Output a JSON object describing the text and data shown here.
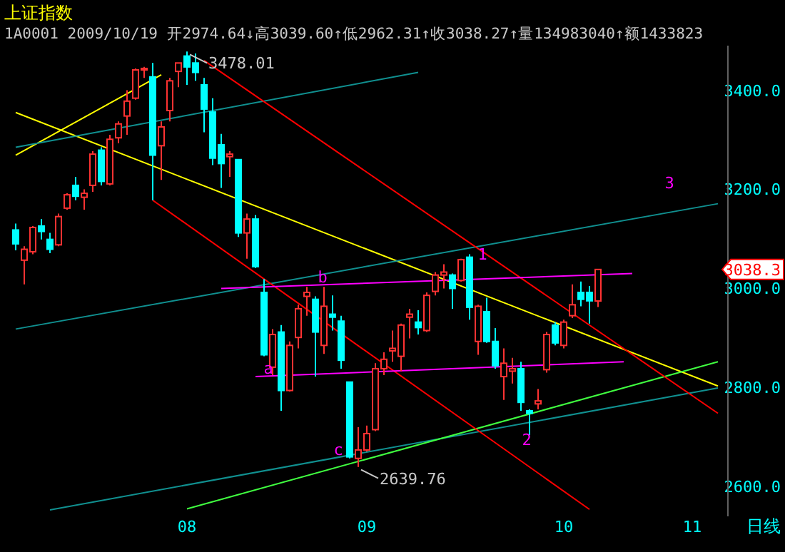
{
  "chart_data": {
    "type": "candlestick",
    "title": "上证指数",
    "subtitle": "1A0001 2009/10/19 开2974.64↓高3039.60↑低2962.31↑收3038.27↑量134983040↑额1433823",
    "categories": [
      null,
      null,
      null,
      null,
      null,
      null,
      null,
      null,
      null,
      null,
      null,
      null,
      null,
      null,
      null,
      null,
      null,
      null,
      null,
      null,
      "08",
      null,
      null,
      null,
      null,
      null,
      null,
      null,
      null,
      null,
      null,
      null,
      null,
      null,
      null,
      null,
      null,
      null,
      null,
      null,
      null,
      "09",
      null,
      null,
      null,
      null,
      null,
      null,
      null,
      null,
      null,
      null,
      null,
      null,
      null,
      null,
      null,
      null,
      null,
      null,
      null,
      null,
      null,
      null,
      "10",
      null,
      null,
      null,
      null,
      null,
      null,
      null,
      null,
      null,
      null,
      null,
      null,
      null,
      null,
      "11",
      null,
      null,
      null
    ],
    "ohlc": [
      [
        3118,
        3131,
        3077,
        3090
      ],
      [
        3057,
        3085,
        3008,
        3079
      ],
      [
        3074,
        3126,
        3069,
        3123
      ],
      [
        3126,
        3140,
        3099,
        3115
      ],
      [
        3099,
        3112,
        3071,
        3079
      ],
      [
        3088,
        3151,
        3085,
        3145
      ],
      [
        3162,
        3192,
        3159,
        3189
      ],
      [
        3208,
        3225,
        3178,
        3186
      ],
      [
        3184,
        3200,
        3159,
        3192
      ],
      [
        3208,
        3277,
        3195,
        3271
      ],
      [
        3279,
        3285,
        3208,
        3216
      ],
      [
        3211,
        3310,
        3208,
        3301
      ],
      [
        3304,
        3337,
        3293,
        3332
      ],
      [
        3348,
        3400,
        3310,
        3378
      ],
      [
        3384,
        3444,
        3381,
        3441
      ],
      [
        3441,
        3447,
        3425,
        3444
      ],
      [
        3427,
        3455,
        3178,
        3269
      ],
      [
        3288,
        3337,
        3219,
        3326
      ],
      [
        3359,
        3425,
        3337,
        3419
      ],
      [
        3438,
        3455,
        3406,
        3455
      ],
      [
        3469,
        3478.01,
        3411,
        3447
      ],
      [
        3455,
        3474,
        3419,
        3436
      ],
      [
        3411,
        3425,
        3315,
        3362
      ],
      [
        3356,
        3384,
        3249,
        3263
      ],
      [
        3290,
        3312,
        3203,
        3252
      ],
      [
        3266,
        3277,
        3225,
        3271
      ],
      [
        3260,
        3260,
        3104,
        3112
      ],
      [
        3112,
        3151,
        3060,
        3140
      ],
      [
        3140,
        3148,
        3041,
        3044
      ],
      [
        2992,
        3019,
        2863,
        2866
      ],
      [
        2841,
        2918,
        2825,
        2907
      ],
      [
        2912,
        2926,
        2753,
        2794
      ],
      [
        2794,
        2893,
        2792,
        2885
      ],
      [
        2901,
        2967,
        2879,
        2959
      ],
      [
        2984,
        3003,
        2945,
        2992
      ],
      [
        2978,
        2984,
        2822,
        2912
      ],
      [
        2885,
        3003,
        2868,
        2964
      ],
      [
        2948,
        2986,
        2915,
        2942
      ],
      [
        2934,
        2945,
        2838,
        2855
      ],
      [
        2811,
        2811,
        2657,
        2660
      ],
      [
        2657,
        2720,
        2639.76,
        2674
      ],
      [
        2674,
        2723,
        2671,
        2707
      ],
      [
        2715,
        2849,
        2712,
        2838
      ],
      [
        2838,
        2871,
        2825,
        2857
      ],
      [
        2874,
        2915,
        2852,
        2879
      ],
      [
        2863,
        2929,
        2833,
        2926
      ],
      [
        2942,
        2959,
        2899,
        2948
      ],
      [
        2932,
        2956,
        2907,
        2921
      ],
      [
        2915,
        2992,
        2912,
        2986
      ],
      [
        2994,
        3033,
        2986,
        3027
      ],
      [
        3027,
        3049,
        3000,
        3033
      ],
      [
        3027,
        3030,
        2959,
        3000
      ],
      [
        3016,
        3060,
        3014,
        3058
      ],
      [
        3063,
        3069,
        2937,
        2962
      ],
      [
        2893,
        2967,
        2866,
        2964
      ],
      [
        2953,
        2981,
        2890,
        2893
      ],
      [
        2893,
        2920,
        2838,
        2844
      ],
      [
        2822,
        2879,
        2775,
        2849
      ],
      [
        2833,
        2860,
        2808,
        2838
      ],
      [
        2838,
        2852,
        2753,
        2770
      ],
      [
        2753,
        2756,
        2704,
        2748
      ],
      [
        2767,
        2797,
        2756,
        2773
      ],
      [
        2836,
        2912,
        2830,
        2907
      ],
      [
        2926,
        2932,
        2885,
        2890
      ],
      [
        2885,
        2937,
        2879,
        2932
      ],
      [
        2945,
        3008,
        2940,
        2967
      ],
      [
        2992,
        3014,
        2964,
        2978
      ],
      [
        2992,
        3005,
        2929,
        2975
      ],
      [
        2974.64,
        3039.6,
        2962.31,
        3038.27
      ],
      null,
      null,
      null,
      null,
      null,
      null,
      null,
      null,
      null,
      null,
      null,
      null,
      null,
      null
    ],
    "colors": [
      "#00ffff",
      "#ff3232",
      "#ff3232",
      "#00ffff",
      "#00ffff",
      "#ff3232",
      "#ff3232",
      "#00ffff",
      "#ff3232",
      "#ff3232",
      "#00ffff",
      "#ff3232",
      "#ff3232",
      "#ff3232",
      "#ff3232",
      "#ff3232",
      "#00ffff",
      "#ff3232",
      "#ff3232",
      "#ff3232",
      "#00ffff",
      "#00ffff",
      "#00ffff",
      "#00ffff",
      "#00ffff",
      "#ff3232",
      "#00ffff",
      "#ff3232",
      "#00ffff",
      "#00ffff",
      "#ff3232",
      "#00ffff",
      "#ff3232",
      "#ff3232",
      "#ff3232",
      "#00ffff",
      "#ff3232",
      "#00ffff",
      "#00ffff",
      "#00ffff",
      "#ff3232",
      "#ff3232",
      "#ff3232",
      "#ff3232",
      "#ff3232",
      "#ff3232",
      "#ff3232",
      "#00ffff",
      "#ff3232",
      "#ff3232",
      "#ff3232",
      "#00ffff",
      "#ff3232",
      "#00ffff",
      "#ff3232",
      "#00ffff",
      "#00ffff",
      "#ff3232",
      "#ff3232",
      "#00ffff",
      "#00ffff",
      "#ff3232",
      "#ff3232",
      "#00ffff",
      "#ff3232",
      "#ff3232",
      "#00ffff",
      "#00ffff",
      "#ff3232",
      null,
      null,
      null,
      null,
      null,
      null,
      null,
      null,
      null,
      null,
      null,
      null,
      null,
      null
    ],
    "ylim": [
      2540,
      3490
    ],
    "yticks": [
      {
        "value": 2600,
        "label": "2600.0"
      },
      {
        "value": 2800,
        "label": "2800.0"
      },
      {
        "value": 3000,
        "label": "3000.0"
      },
      {
        "value": 3200,
        "label": "3200.0"
      },
      {
        "value": 3400,
        "label": "3400.0"
      }
    ],
    "series": [
      {
        "type": "line",
        "color": "#ffff00",
        "values": [
          3269,
          null,
          null,
          null,
          null,
          null,
          null,
          null,
          null,
          null,
          null,
          null,
          null,
          null,
          null,
          null,
          null,
          3431,
          null,
          null,
          null,
          null,
          null,
          null,
          null,
          null,
          null,
          null,
          null,
          null,
          null,
          null,
          null,
          null,
          null,
          null,
          null,
          null,
          null,
          null,
          null,
          null,
          null,
          null,
          null,
          null,
          null,
          null,
          null,
          null,
          null,
          null,
          null,
          null,
          null,
          null,
          null,
          null,
          null,
          null,
          null,
          null,
          null,
          null,
          null,
          null,
          null,
          null,
          null,
          null,
          null,
          null,
          null,
          null,
          null,
          null,
          null,
          null,
          null,
          null,
          null,
          null,
          null
        ]
      },
      {
        "type": "line",
        "color": "#ffff00",
        "values": [
          3355,
          null,
          null,
          null,
          null,
          null,
          null,
          null,
          null,
          null,
          null,
          null,
          null,
          null,
          null,
          null,
          null,
          null,
          null,
          null,
          null,
          null,
          null,
          null,
          null,
          null,
          null,
          null,
          null,
          null,
          null,
          null,
          null,
          null,
          null,
          null,
          null,
          null,
          null,
          null,
          null,
          null,
          null,
          null,
          null,
          null,
          null,
          null,
          null,
          null,
          null,
          null,
          null,
          null,
          null,
          null,
          null,
          null,
          null,
          null,
          null,
          null,
          null,
          null,
          null,
          null,
          null,
          null,
          null,
          null,
          null,
          null,
          null,
          null,
          null,
          null,
          null,
          null,
          null,
          null,
          null,
          null,
          2803
        ]
      },
      {
        "type": "line",
        "color": "#109090",
        "values": [
          3285,
          null,
          null,
          null,
          null,
          null,
          null,
          null,
          null,
          null,
          null,
          null,
          null,
          null,
          null,
          null,
          null,
          null,
          null,
          null,
          null,
          null,
          null,
          null,
          null,
          null,
          null,
          null,
          null,
          null,
          null,
          null,
          null,
          null,
          null,
          null,
          null,
          null,
          null,
          null,
          null,
          null,
          null,
          null,
          null,
          null,
          null,
          3436,
          null,
          null,
          null,
          null,
          null,
          null,
          null,
          null,
          null,
          null,
          null,
          null,
          null,
          null,
          null,
          null,
          null,
          null,
          null,
          null,
          null,
          null,
          null,
          null,
          null,
          null,
          null,
          null,
          null,
          null,
          null,
          null,
          null,
          null,
          null
        ]
      },
      {
        "type": "line",
        "color": "#109090",
        "values": [
          2918,
          null,
          null,
          null,
          null,
          null,
          null,
          null,
          null,
          null,
          null,
          null,
          null,
          null,
          null,
          null,
          null,
          null,
          null,
          null,
          null,
          null,
          null,
          null,
          null,
          null,
          null,
          null,
          null,
          null,
          null,
          null,
          null,
          null,
          null,
          null,
          null,
          null,
          null,
          null,
          null,
          null,
          null,
          null,
          null,
          null,
          null,
          null,
          null,
          null,
          null,
          null,
          null,
          null,
          null,
          null,
          null,
          null,
          null,
          null,
          null,
          null,
          null,
          null,
          null,
          null,
          null,
          null,
          null,
          null,
          null,
          null,
          null,
          null,
          null,
          null,
          null,
          null,
          null,
          null,
          null,
          null,
          3171
        ]
      },
      {
        "type": "line",
        "color": "#109090",
        "values": [
          null,
          null,
          null,
          null,
          2553,
          null,
          null,
          null,
          null,
          null,
          null,
          null,
          null,
          null,
          null,
          null,
          null,
          null,
          null,
          null,
          null,
          null,
          null,
          null,
          null,
          null,
          null,
          null,
          null,
          null,
          null,
          null,
          null,
          null,
          null,
          null,
          null,
          null,
          null,
          null,
          null,
          null,
          null,
          null,
          null,
          null,
          null,
          null,
          null,
          null,
          null,
          null,
          null,
          null,
          null,
          null,
          null,
          null,
          null,
          null,
          null,
          null,
          null,
          null,
          null,
          null,
          null,
          null,
          null,
          null,
          null,
          null,
          null,
          null,
          null,
          null,
          null,
          null,
          null,
          null,
          null,
          null,
          2799
        ]
      },
      {
        "type": "line",
        "color": "#40ff40",
        "values": [
          null,
          null,
          null,
          null,
          null,
          null,
          null,
          null,
          null,
          null,
          null,
          null,
          null,
          null,
          null,
          null,
          null,
          null,
          null,
          null,
          2555,
          null,
          null,
          null,
          null,
          null,
          null,
          null,
          null,
          null,
          null,
          null,
          null,
          null,
          null,
          null,
          null,
          null,
          null,
          null,
          null,
          null,
          null,
          null,
          null,
          null,
          null,
          null,
          null,
          null,
          null,
          null,
          null,
          null,
          null,
          null,
          null,
          null,
          null,
          null,
          null,
          null,
          null,
          null,
          null,
          null,
          null,
          null,
          null,
          null,
          null,
          null,
          null,
          null,
          null,
          null,
          null,
          null,
          null,
          null,
          null,
          null,
          2852
        ]
      },
      {
        "type": "line",
        "color": "#ff0000",
        "values": [
          null,
          null,
          null,
          null,
          null,
          null,
          null,
          null,
          null,
          null,
          null,
          null,
          null,
          null,
          null,
          null,
          null,
          null,
          null,
          null,
          null,
          null,
          3460,
          null,
          null,
          null,
          null,
          null,
          null,
          null,
          null,
          null,
          null,
          null,
          null,
          null,
          null,
          null,
          null,
          null,
          null,
          null,
          null,
          null,
          null,
          null,
          null,
          null,
          null,
          null,
          null,
          null,
          null,
          null,
          null,
          null,
          null,
          null,
          null,
          null,
          null,
          null,
          null,
          null,
          null,
          null,
          null,
          null,
          null,
          null,
          null,
          null,
          null,
          null,
          null,
          null,
          null,
          null,
          null,
          null,
          null,
          null,
          2748
        ]
      },
      {
        "type": "line",
        "color": "#ff0000",
        "values": [
          null,
          null,
          null,
          null,
          null,
          null,
          null,
          null,
          null,
          null,
          null,
          null,
          null,
          null,
          null,
          null,
          3178,
          null,
          null,
          null,
          null,
          null,
          null,
          null,
          null,
          null,
          null,
          null,
          null,
          null,
          null,
          null,
          null,
          null,
          null,
          null,
          null,
          null,
          null,
          null,
          null,
          null,
          null,
          null,
          null,
          null,
          null,
          null,
          null,
          null,
          null,
          null,
          null,
          null,
          null,
          null,
          null,
          null,
          null,
          null,
          null,
          null,
          null,
          null,
          null,
          null,
          null,
          2554,
          null,
          null,
          null,
          null,
          null,
          null,
          null,
          null,
          null,
          null,
          null,
          null,
          null,
          null,
          null
        ]
      },
      {
        "type": "line",
        "color": "#ff00ff",
        "values": [
          null,
          null,
          null,
          null,
          null,
          null,
          null,
          null,
          null,
          null,
          null,
          null,
          null,
          null,
          null,
          null,
          null,
          null,
          null,
          null,
          null,
          null,
          null,
          null,
          3000,
          null,
          null,
          null,
          null,
          null,
          null,
          null,
          null,
          null,
          null,
          null,
          null,
          null,
          null,
          null,
          null,
          null,
          null,
          null,
          null,
          null,
          null,
          null,
          null,
          null,
          null,
          null,
          null,
          null,
          null,
          null,
          null,
          null,
          null,
          null,
          null,
          null,
          null,
          null,
          null,
          null,
          null,
          null,
          null,
          null,
          null,
          null,
          3030,
          null,
          null,
          null,
          null,
          null,
          null,
          null,
          null,
          null,
          null
        ]
      },
      {
        "type": "line",
        "color": "#ff00ff",
        "values": [
          null,
          null,
          null,
          null,
          null,
          null,
          null,
          null,
          null,
          null,
          null,
          null,
          null,
          null,
          null,
          null,
          null,
          null,
          null,
          null,
          null,
          null,
          null,
          null,
          null,
          null,
          null,
          null,
          2822,
          null,
          null,
          null,
          null,
          null,
          null,
          null,
          null,
          null,
          null,
          null,
          null,
          null,
          null,
          null,
          null,
          null,
          null,
          null,
          null,
          null,
          null,
          null,
          null,
          null,
          null,
          null,
          null,
          null,
          null,
          null,
          null,
          null,
          null,
          null,
          null,
          null,
          null,
          null,
          null,
          null,
          null,
          2852,
          null,
          null,
          null,
          null,
          null,
          null,
          null,
          null,
          null,
          null,
          null
        ]
      }
    ],
    "annotations": [
      "3478.01",
      "2639.76",
      "a",
      "b",
      "c",
      "1",
      "2",
      "3",
      "3038.3",
      "日线"
    ]
  }
}
